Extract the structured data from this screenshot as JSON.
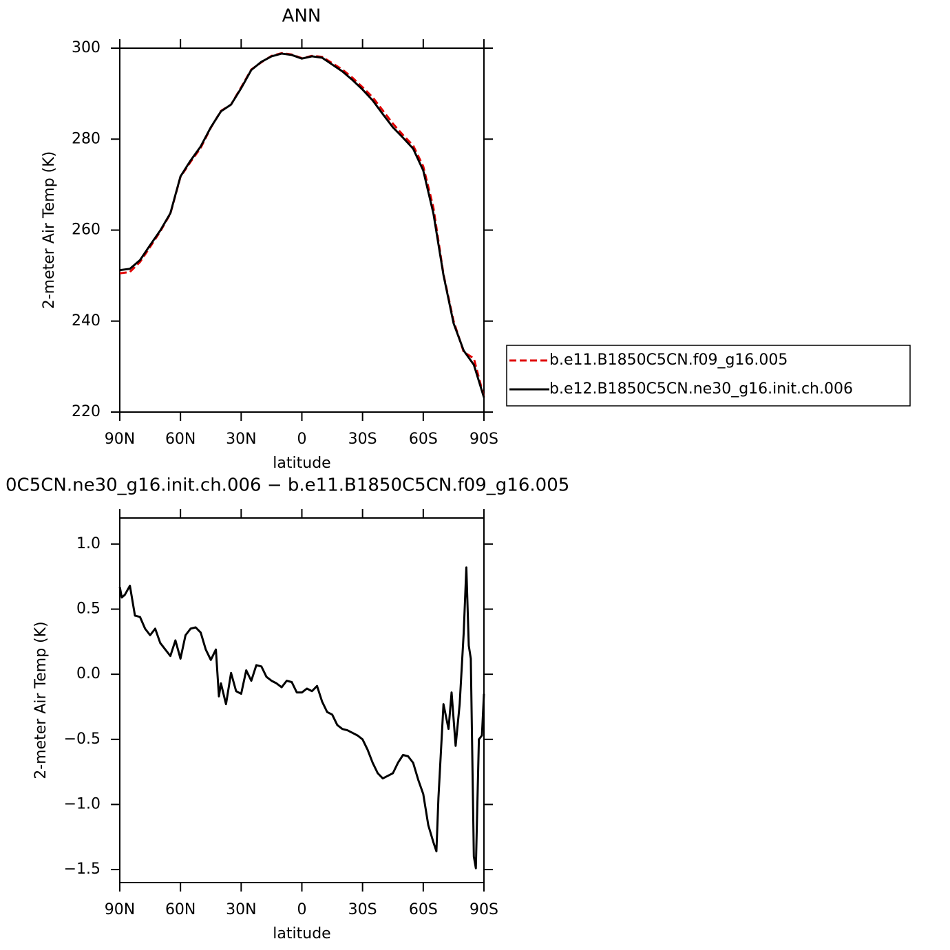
{
  "chart_data": [
    {
      "type": "line",
      "title": "ANN",
      "xlabel": "latitude",
      "ylabel": "2-meter Air Temp (K)",
      "x": [
        90,
        85,
        80,
        75,
        70,
        65,
        60,
        55,
        50,
        45,
        40,
        35,
        30,
        25,
        20,
        15,
        10,
        5,
        0,
        -5,
        -10,
        -15,
        -20,
        -25,
        -30,
        -35,
        -40,
        -45,
        -50,
        -55,
        -60,
        -65,
        -70,
        -75,
        -80,
        -85,
        -90
      ],
      "xlim": [
        90,
        -90
      ],
      "xticks": [
        {
          "value": 90,
          "label": "90N"
        },
        {
          "value": 60,
          "label": "60N"
        },
        {
          "value": 30,
          "label": "30N"
        },
        0,
        {
          "value": -30,
          "label": "30S"
        },
        {
          "value": -60,
          "label": "60S"
        },
        {
          "value": -90,
          "label": "90S"
        }
      ],
      "ylim": [
        220,
        300
      ],
      "yticks": [
        220,
        240,
        260,
        280,
        300
      ],
      "legend": "right",
      "series": [
        {
          "name": "b.e11.B1850C5CN.f09_g16.005",
          "color": "#e00000",
          "dashed": true,
          "values": [
            250.5,
            250.8,
            253.0,
            256.3,
            259.7,
            263.6,
            271.7,
            275.0,
            278.1,
            282.5,
            286.2,
            287.6,
            291.4,
            295.3,
            296.9,
            298.3,
            298.9,
            298.6,
            297.8,
            298.3,
            298.1,
            296.7,
            295.3,
            293.5,
            291.4,
            289.2,
            286.3,
            283.4,
            280.9,
            278.6,
            274.0,
            265.0,
            250.3,
            240.0,
            233.2,
            231.8,
            223.3
          ]
        },
        {
          "name": "b.e12.B1850C5CN.ne30_g16.init.ch.006",
          "color": "#000000",
          "dashed": false,
          "values": [
            251.2,
            251.5,
            253.4,
            256.7,
            259.9,
            263.7,
            271.8,
            275.3,
            278.4,
            282.6,
            286.1,
            287.6,
            291.2,
            295.2,
            297.0,
            298.2,
            298.8,
            298.5,
            297.7,
            298.2,
            297.9,
            296.4,
            294.9,
            293.0,
            290.9,
            288.5,
            285.5,
            282.6,
            280.3,
            277.9,
            273.1,
            263.7,
            250.1,
            239.5,
            233.5,
            230.4,
            223.2
          ]
        }
      ]
    },
    {
      "type": "line",
      "title": "0C5CN.ne30_g16.init.ch.006 − b.e11.B1850C5CN.f09_g16.005",
      "xlabel": "latitude",
      "ylabel": "2-meter Air Temp (K)",
      "x": [
        90,
        89,
        87.5,
        85,
        82.5,
        80,
        77.5,
        75,
        72.5,
        70,
        67.5,
        65,
        62.5,
        60,
        57.5,
        55,
        52.5,
        50,
        47.5,
        45,
        42.5,
        41,
        40,
        37.5,
        35,
        32.5,
        30,
        27.5,
        25,
        22.5,
        20,
        17.5,
        15,
        12.5,
        10,
        7.5,
        5,
        2.5,
        0,
        -2.5,
        -5,
        -7.5,
        -10,
        -12.5,
        -15,
        -17.5,
        -20,
        -22.5,
        -25,
        -27.5,
        -30,
        -32.5,
        -35,
        -37.5,
        -40,
        -42.5,
        -45,
        -47.5,
        -50,
        -52.5,
        -55,
        -57.5,
        -60,
        -62.5,
        -65,
        -66.5,
        -67.5,
        -70,
        -72.5,
        -74,
        -76,
        -78,
        -80,
        -81.3,
        -82.5,
        -83.5,
        -85,
        -86,
        -87.5,
        -89,
        -90
      ],
      "xlim": [
        90,
        -90
      ],
      "xticks": [
        {
          "value": 90,
          "label": "90N"
        },
        {
          "value": 60,
          "label": "60N"
        },
        {
          "value": 30,
          "label": "30N"
        },
        0,
        {
          "value": -30,
          "label": "30S"
        },
        {
          "value": -60,
          "label": "60S"
        },
        {
          "value": -90,
          "label": "90S"
        }
      ],
      "ylim": [
        -1.6,
        1.2
      ],
      "yticks": [
        {
          "value": -1.5,
          "label": "−1.5"
        },
        {
          "value": -1,
          "label": "−1.0"
        },
        {
          "value": -0.5,
          "label": "−0.5"
        },
        {
          "value": 0,
          "label": "0.0"
        },
        0.5,
        {
          "value": 1,
          "label": "1.0"
        }
      ],
      "series": [
        {
          "color": "#000000",
          "dashed": false,
          "values": [
            0.67,
            0.59,
            0.61,
            0.68,
            0.45,
            0.44,
            0.35,
            0.3,
            0.35,
            0.24,
            0.19,
            0.14,
            0.26,
            0.12,
            0.3,
            0.35,
            0.36,
            0.32,
            0.19,
            0.11,
            0.19,
            -0.17,
            -0.07,
            -0.23,
            0.01,
            -0.13,
            -0.15,
            0.03,
            -0.05,
            0.07,
            0.06,
            -0.02,
            -0.05,
            -0.07,
            -0.1,
            -0.05,
            -0.06,
            -0.14,
            -0.14,
            -0.11,
            -0.13,
            -0.09,
            -0.21,
            -0.29,
            -0.31,
            -0.39,
            -0.42,
            -0.43,
            -0.45,
            -0.47,
            -0.5,
            -0.58,
            -0.68,
            -0.76,
            -0.8,
            -0.78,
            -0.76,
            -0.68,
            -0.62,
            -0.63,
            -0.68,
            -0.81,
            -0.92,
            -1.16,
            -1.29,
            -1.36,
            -0.95,
            -0.23,
            -0.42,
            -0.14,
            -0.55,
            -0.23,
            0.32,
            0.82,
            0.22,
            0.12,
            -1.4,
            -1.49,
            -0.5,
            -0.47,
            -0.15
          ]
        }
      ]
    }
  ]
}
